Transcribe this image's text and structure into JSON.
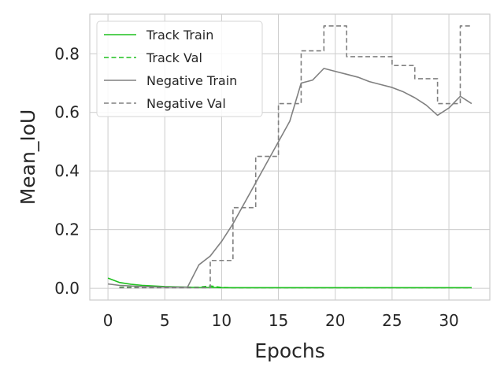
{
  "chart_data": {
    "type": "line",
    "title": "",
    "xlabel": "Epochs",
    "ylabel": "Mean_IoU",
    "xlim": [
      -1.6,
      33.6
    ],
    "ylim": [
      -0.04,
      0.935
    ],
    "xticks": [
      0,
      5,
      10,
      15,
      20,
      25,
      30
    ],
    "yticks": [
      0.0,
      0.2,
      0.4,
      0.6,
      0.8
    ],
    "xtick_labels": [
      "0",
      "5",
      "10",
      "15",
      "20",
      "25",
      "30"
    ],
    "ytick_labels": [
      "0.0",
      "0.2",
      "0.4",
      "0.6",
      "0.8"
    ],
    "grid": true,
    "legend_position": "top-left",
    "series": [
      {
        "name": "Track Train",
        "color": "#1ec01e",
        "dash": "solid",
        "x": [
          0,
          1,
          2,
          3,
          4,
          5,
          6,
          7,
          8,
          9,
          10,
          11,
          12,
          13,
          14,
          15,
          16,
          17,
          18,
          19,
          20,
          21,
          22,
          23,
          24,
          25,
          26,
          27,
          28,
          29,
          30,
          31,
          32
        ],
        "y": [
          0.035,
          0.02,
          0.014,
          0.01,
          0.008,
          0.006,
          0.005,
          0.004,
          0.003,
          0.003,
          0.002,
          0.002,
          0.002,
          0.002,
          0.002,
          0.002,
          0.002,
          0.002,
          0.002,
          0.002,
          0.002,
          0.002,
          0.002,
          0.002,
          0.002,
          0.002,
          0.002,
          0.002,
          0.002,
          0.002,
          0.002,
          0.002,
          0.002
        ]
      },
      {
        "name": "Track Val",
        "color": "#1ec01e",
        "dash": "dashed",
        "x": [
          1,
          2,
          3,
          4,
          5,
          6,
          7,
          8,
          9,
          10,
          11,
          12,
          13,
          14,
          15,
          16,
          17,
          18,
          19,
          20,
          21,
          22,
          23,
          24,
          25,
          26,
          27,
          28,
          29,
          30,
          31,
          32
        ],
        "y": [
          0.004,
          0.004,
          0.004,
          0.004,
          0.004,
          0.004,
          0.004,
          0.004,
          0.008,
          0.003,
          0.002,
          0.002,
          0.002,
          0.002,
          0.002,
          0.002,
          0.002,
          0.002,
          0.002,
          0.002,
          0.002,
          0.002,
          0.002,
          0.002,
          0.002,
          0.002,
          0.002,
          0.002,
          0.002,
          0.002,
          0.002,
          0.002
        ]
      },
      {
        "name": "Negative Train",
        "color": "#808080",
        "dash": "solid",
        "x": [
          0,
          1,
          2,
          3,
          4,
          5,
          6,
          7,
          8,
          9,
          10,
          11,
          12,
          13,
          14,
          15,
          16,
          17,
          18,
          19,
          20,
          21,
          22,
          23,
          24,
          25,
          26,
          27,
          28,
          29,
          30,
          31,
          32
        ],
        "y": [
          0.015,
          0.01,
          0.008,
          0.006,
          0.005,
          0.004,
          0.004,
          0.004,
          0.08,
          0.11,
          0.16,
          0.22,
          0.29,
          0.36,
          0.43,
          0.5,
          0.57,
          0.7,
          0.71,
          0.75,
          0.74,
          0.73,
          0.72,
          0.705,
          0.695,
          0.685,
          0.67,
          0.65,
          0.625,
          0.59,
          0.615,
          0.655,
          0.63
        ]
      },
      {
        "name": "Negative Val",
        "color": "#808080",
        "dash": "dashed",
        "step": true,
        "x": [
          1,
          2,
          3,
          4,
          5,
          6,
          7,
          8,
          9,
          10,
          11,
          12,
          13,
          14,
          15,
          16,
          17,
          18,
          19,
          20,
          21,
          22,
          23,
          24,
          25,
          26,
          27,
          28,
          29,
          30,
          31,
          32
        ],
        "y": [
          0.002,
          0.002,
          0.002,
          0.002,
          0.002,
          0.002,
          0.002,
          0.002,
          0.095,
          0.095,
          0.275,
          0.275,
          0.45,
          0.45,
          0.63,
          0.63,
          0.81,
          0.81,
          0.895,
          0.895,
          0.79,
          0.79,
          0.79,
          0.79,
          0.76,
          0.76,
          0.715,
          0.715,
          0.63,
          0.63,
          0.895,
          0.895
        ]
      }
    ]
  }
}
